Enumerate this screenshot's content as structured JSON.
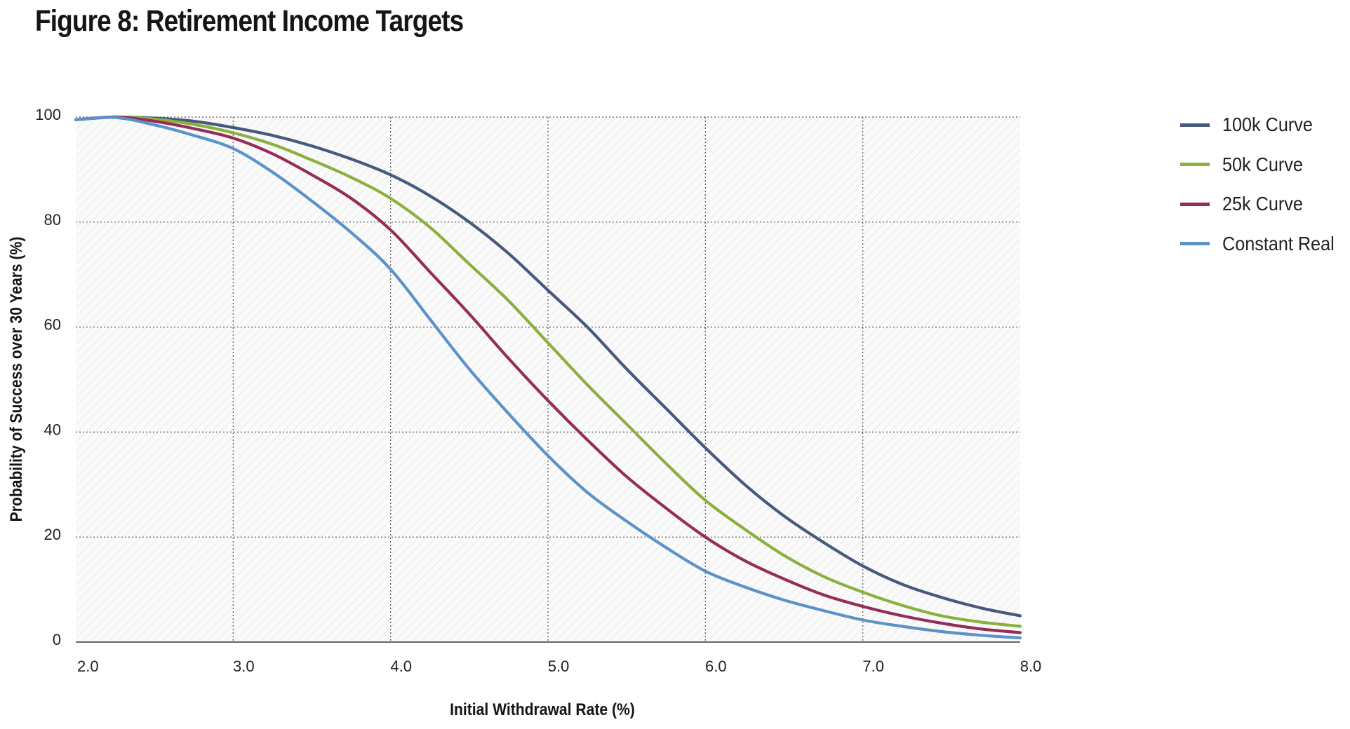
{
  "chart_data": {
    "type": "line",
    "title": "Figure 8: Retirement Income Targets",
    "xlabel": "Initial Withdrawal Rate (%)",
    "ylabel": "Probability of Success over 30 Years (%)",
    "xlim": [
      2.0,
      8.0
    ],
    "ylim": [
      0,
      100
    ],
    "x_ticks": [
      2.0,
      3.0,
      4.0,
      5.0,
      6.0,
      7.0,
      8.0
    ],
    "x_tick_labels": [
      "2.0",
      "3.0",
      "4.0",
      "5.0",
      "6.0",
      "7.0",
      "8.0"
    ],
    "y_ticks": [
      0,
      20,
      40,
      60,
      80,
      100
    ],
    "y_tick_labels": [
      "0",
      "20",
      "40",
      "60",
      "80",
      "100"
    ],
    "grid": true,
    "legend_position": "right",
    "x": [
      2.0,
      2.25,
      2.5,
      2.75,
      3.0,
      3.25,
      3.5,
      3.75,
      4.0,
      4.25,
      4.5,
      4.75,
      5.0,
      5.25,
      5.5,
      5.75,
      6.0,
      6.25,
      6.5,
      6.75,
      7.0,
      7.25,
      7.5,
      7.75,
      8.0
    ],
    "series": [
      {
        "name": "100k Curve",
        "color": "#46597e",
        "values": [
          99.5,
          100,
          99.8,
          99.2,
          98.0,
          96.5,
          94.5,
          92.0,
          89.0,
          85.0,
          80.0,
          74.0,
          67.0,
          60.0,
          52.0,
          44.5,
          37.0,
          30.0,
          24.0,
          19.0,
          14.5,
          11.0,
          8.5,
          6.5,
          5.0
        ]
      },
      {
        "name": "50k Curve",
        "color": "#8bb03e",
        "values": [
          99.5,
          100,
          99.6,
          98.6,
          97.0,
          94.8,
          91.8,
          88.5,
          84.5,
          79.0,
          72.0,
          65.0,
          57.0,
          49.0,
          41.5,
          34.0,
          27.0,
          21.5,
          16.5,
          12.5,
          9.5,
          7.0,
          5.0,
          3.8,
          3.0
        ]
      },
      {
        "name": "25k Curve",
        "color": "#952d58",
        "values": [
          99.5,
          100,
          99.2,
          97.8,
          96.0,
          93.0,
          89.0,
          84.5,
          78.5,
          70.5,
          62.5,
          54.0,
          46.0,
          38.5,
          31.5,
          25.5,
          20.0,
          15.5,
          12.0,
          9.0,
          6.8,
          5.0,
          3.6,
          2.5,
          1.8
        ]
      },
      {
        "name": "Constant Real",
        "color": "#5b93c9",
        "values": [
          99.5,
          99.9,
          98.5,
          96.5,
          94.0,
          89.5,
          84.0,
          78.0,
          71.0,
          61.5,
          52.0,
          43.5,
          35.5,
          28.5,
          23.0,
          18.0,
          13.5,
          10.5,
          8.0,
          6.0,
          4.2,
          3.0,
          2.0,
          1.3,
          0.8
        ]
      }
    ]
  }
}
